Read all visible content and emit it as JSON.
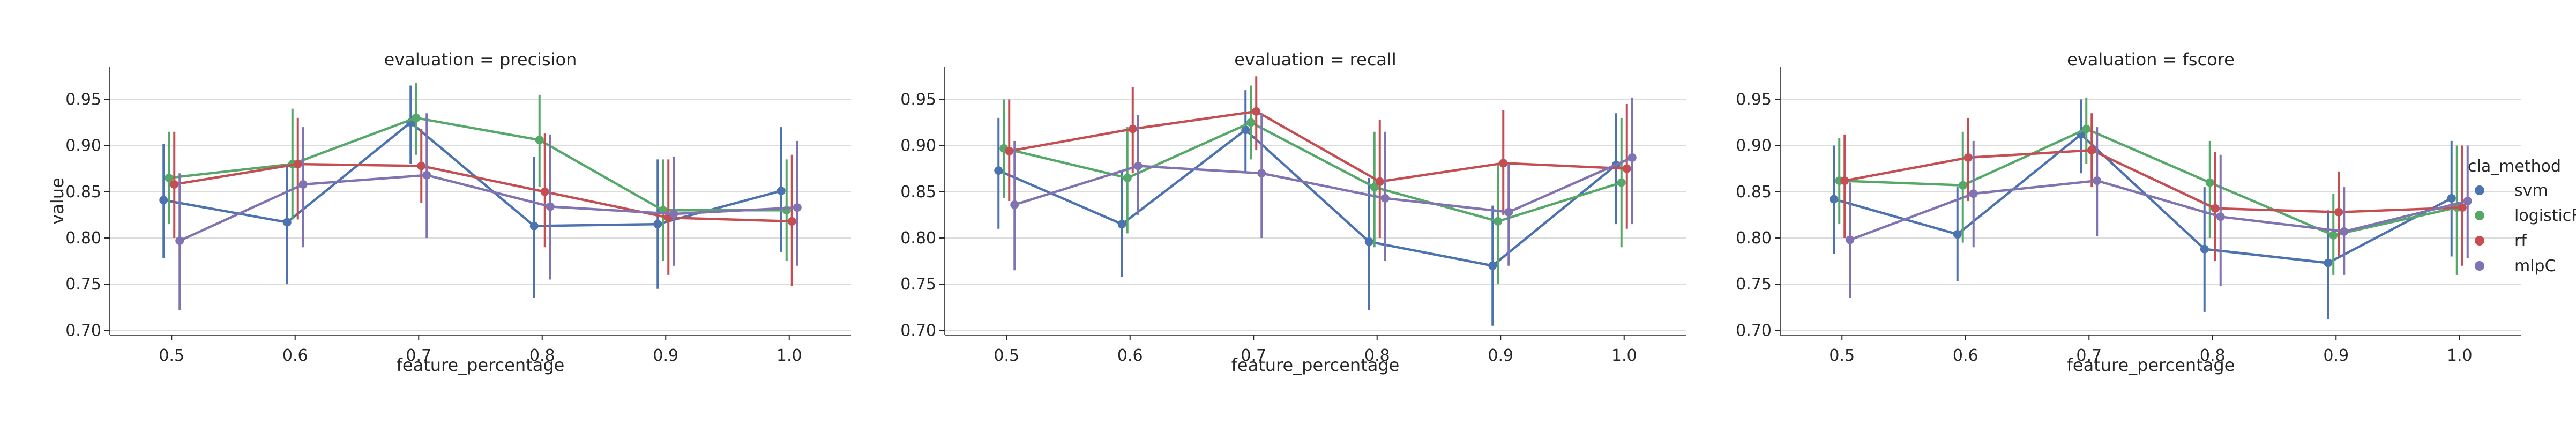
{
  "chart_data": {
    "type": "line",
    "layout": "facet-grid-1x3",
    "x": [
      0.5,
      0.6,
      0.7,
      0.8,
      0.9,
      1.0
    ],
    "x_tick_labels": [
      "0.5",
      "0.6",
      "0.7",
      "0.8",
      "0.9",
      "1.0"
    ],
    "xlabel": "feature_percentage",
    "ylabel": "value",
    "ylim": [
      0.695,
      0.985
    ],
    "y_ticks": [
      0.7,
      0.75,
      0.8,
      0.85,
      0.9,
      0.95
    ],
    "y_tick_labels": [
      "0.70",
      "0.75",
      "0.80",
      "0.85",
      "0.90",
      "0.95"
    ],
    "grid": "horizontal",
    "error_bars": true,
    "legend": {
      "title": "cla_method",
      "placement": "right",
      "entries": [
        {
          "name": "svm",
          "color": "#4c72b0"
        },
        {
          "name": "logisticR",
          "color": "#55a868"
        },
        {
          "name": "rf",
          "color": "#c44e52"
        },
        {
          "name": "mlpC",
          "color": "#8172b2"
        }
      ]
    },
    "panels": [
      {
        "title": "evaluation = precision",
        "series": [
          {
            "name": "svm",
            "values": [
              0.841,
              0.817,
              0.925,
              0.813,
              0.815,
              0.851
            ],
            "err_low": [
              0.778,
              0.75,
              0.88,
              0.735,
              0.745,
              0.785
            ],
            "err_high": [
              0.902,
              0.88,
              0.965,
              0.888,
              0.885,
              0.92
            ]
          },
          {
            "name": "logisticR",
            "values": [
              0.865,
              0.88,
              0.93,
              0.906,
              0.83,
              0.83
            ],
            "err_low": [
              0.815,
              0.82,
              0.89,
              0.855,
              0.775,
              0.775
            ],
            "err_high": [
              0.915,
              0.94,
              0.968,
              0.955,
              0.885,
              0.885
            ]
          },
          {
            "name": "rf",
            "values": [
              0.858,
              0.88,
              0.878,
              0.85,
              0.822,
              0.818
            ],
            "err_low": [
              0.8,
              0.82,
              0.838,
              0.79,
              0.76,
              0.748
            ],
            "err_high": [
              0.915,
              0.93,
              0.918,
              0.913,
              0.885,
              0.89
            ]
          },
          {
            "name": "mlpC",
            "values": [
              0.797,
              0.858,
              0.868,
              0.834,
              0.826,
              0.833
            ],
            "err_low": [
              0.722,
              0.79,
              0.8,
              0.755,
              0.77,
              0.77
            ],
            "err_high": [
              0.87,
              0.92,
              0.935,
              0.912,
              0.888,
              0.905
            ]
          }
        ]
      },
      {
        "title": "evaluation = recall",
        "series": [
          {
            "name": "svm",
            "values": [
              0.873,
              0.815,
              0.917,
              0.796,
              0.77,
              0.879
            ],
            "err_low": [
              0.81,
              0.758,
              0.87,
              0.722,
              0.705,
              0.815
            ],
            "err_high": [
              0.93,
              0.873,
              0.96,
              0.865,
              0.835,
              0.935
            ]
          },
          {
            "name": "logisticR",
            "values": [
              0.897,
              0.865,
              0.925,
              0.855,
              0.818,
              0.86
            ],
            "err_low": [
              0.843,
              0.805,
              0.885,
              0.79,
              0.75,
              0.79
            ],
            "err_high": [
              0.95,
              0.92,
              0.965,
              0.915,
              0.88,
              0.93
            ]
          },
          {
            "name": "rf",
            "values": [
              0.894,
              0.918,
              0.937,
              0.861,
              0.881,
              0.875
            ],
            "err_low": [
              0.84,
              0.87,
              0.895,
              0.8,
              0.825,
              0.81
            ],
            "err_high": [
              0.95,
              0.963,
              0.975,
              0.928,
              0.938,
              0.945
            ]
          },
          {
            "name": "mlpC",
            "values": [
              0.836,
              0.878,
              0.87,
              0.843,
              0.828,
              0.887
            ],
            "err_low": [
              0.765,
              0.825,
              0.8,
              0.775,
              0.77,
              0.815
            ],
            "err_high": [
              0.905,
              0.933,
              0.935,
              0.915,
              0.88,
              0.952
            ]
          }
        ]
      },
      {
        "title": "evaluation = fscore",
        "series": [
          {
            "name": "svm",
            "values": [
              0.842,
              0.804,
              0.912,
              0.788,
              0.773,
              0.843
            ],
            "err_low": [
              0.783,
              0.753,
              0.87,
              0.72,
              0.712,
              0.78
            ],
            "err_high": [
              0.9,
              0.855,
              0.95,
              0.855,
              0.83,
              0.905
            ]
          },
          {
            "name": "logisticR",
            "values": [
              0.862,
              0.857,
              0.918,
              0.86,
              0.803,
              0.833
            ],
            "err_low": [
              0.815,
              0.795,
              0.88,
              0.8,
              0.76,
              0.76
            ],
            "err_high": [
              0.908,
              0.915,
              0.952,
              0.905,
              0.848,
              0.9
            ]
          },
          {
            "name": "rf",
            "values": [
              0.862,
              0.887,
              0.895,
              0.832,
              0.828,
              0.833
            ],
            "err_low": [
              0.8,
              0.84,
              0.855,
              0.775,
              0.78,
              0.77
            ],
            "err_high": [
              0.912,
              0.93,
              0.935,
              0.893,
              0.872,
              0.9
            ]
          },
          {
            "name": "mlpC",
            "values": [
              0.798,
              0.848,
              0.862,
              0.823,
              0.807,
              0.84
            ],
            "err_low": [
              0.735,
              0.79,
              0.802,
              0.748,
              0.76,
              0.778
            ],
            "err_high": [
              0.86,
              0.905,
              0.92,
              0.89,
              0.855,
              0.9
            ]
          }
        ]
      }
    ]
  }
}
